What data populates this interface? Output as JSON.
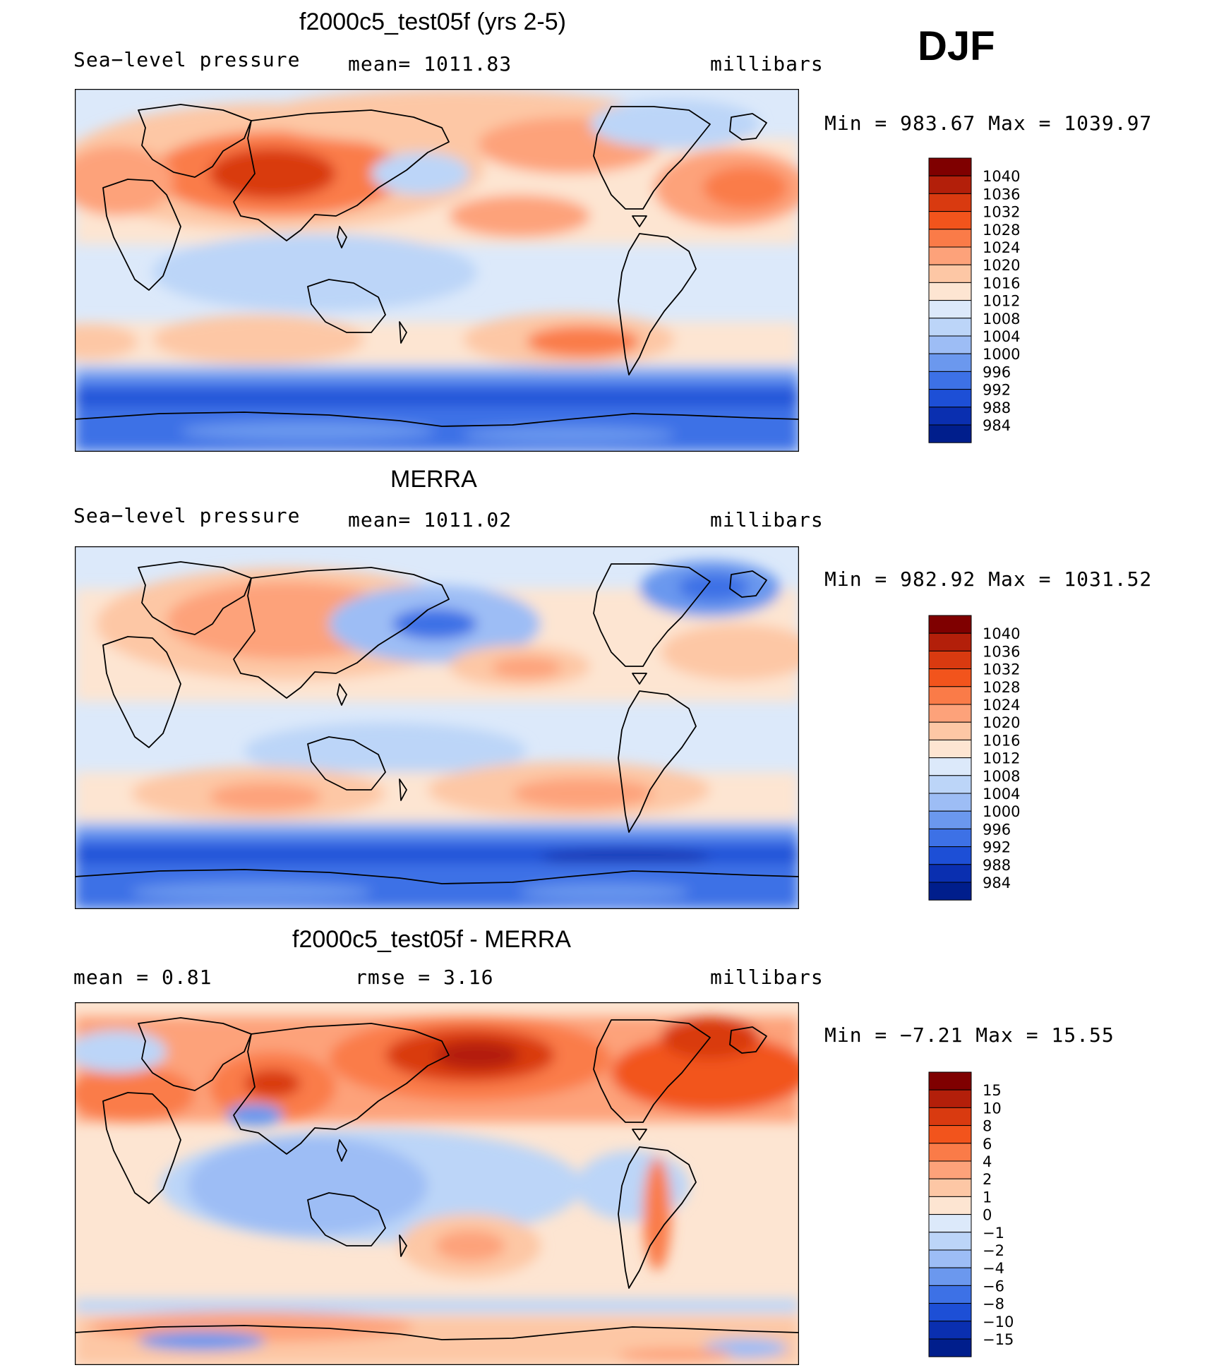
{
  "season": "DJF",
  "chart_data": [
    {
      "type": "heatmap",
      "title": "f2000c5_test05f (yrs 2-5)",
      "left_label": "Sea−level pressure",
      "center_label": "mean=  1011.83",
      "units": "millibars",
      "minmax": "Min  =  983.67  Max  =  1039.97",
      "min": 983.67,
      "max": 1039.97,
      "mean": 1011.83,
      "colorbar_labels": [
        "1040",
        "1036",
        "1032",
        "1028",
        "1024",
        "1020",
        "1016",
        "1012",
        "1008",
        "1004",
        "1000",
        "996",
        "992",
        "988",
        "984"
      ],
      "colorbar_colors": [
        "#7f0000",
        "#b31f0a",
        "#d93a10",
        "#f2541c",
        "#fa7b48",
        "#fda27a",
        "#fdc7a5",
        "#fde5d2",
        "#dce9fa",
        "#bcd5f8",
        "#9dbdf5",
        "#6b98ee",
        "#3d71e6",
        "#1d4fd6",
        "#0a2fb0",
        "#001e8c"
      ]
    },
    {
      "type": "heatmap",
      "title": "MERRA",
      "left_label": "Sea−level pressure",
      "center_label": "mean=  1011.02",
      "units": "millibars",
      "minmax": "Min  =  982.92  Max  =  1031.52",
      "min": 982.92,
      "max": 1031.52,
      "mean": 1011.02,
      "colorbar_labels": [
        "1040",
        "1036",
        "1032",
        "1028",
        "1024",
        "1020",
        "1016",
        "1012",
        "1008",
        "1004",
        "1000",
        "996",
        "992",
        "988",
        "984"
      ],
      "colorbar_colors": [
        "#7f0000",
        "#b31f0a",
        "#d93a10",
        "#f2541c",
        "#fa7b48",
        "#fda27a",
        "#fdc7a5",
        "#fde5d2",
        "#dce9fa",
        "#bcd5f8",
        "#9dbdf5",
        "#6b98ee",
        "#3d71e6",
        "#1d4fd6",
        "#0a2fb0",
        "#001e8c"
      ]
    },
    {
      "type": "heatmap",
      "title": "f2000c5_test05f - MERRA",
      "left_label": "mean =    0.81",
      "center_label": "rmse =    3.16",
      "units": "millibars",
      "minmax": "Min  =   −7.21  Max  =   15.55",
      "min": -7.21,
      "max": 15.55,
      "mean": 0.81,
      "rmse": 3.16,
      "colorbar_labels": [
        "15",
        "10",
        "8",
        "6",
        "4",
        "2",
        "1",
        "0",
        "−1",
        "−2",
        "−4",
        "−6",
        "−8",
        "−10",
        "−15"
      ],
      "colorbar_colors": [
        "#7f0000",
        "#b31f0a",
        "#d93a10",
        "#f2541c",
        "#fa7b48",
        "#fda27a",
        "#fdc7a5",
        "#fde5d2",
        "#dce9fa",
        "#bcd5f8",
        "#9dbdf5",
        "#6b98ee",
        "#3d71e6",
        "#1d4fd6",
        "#0a2fb0",
        "#001e8c"
      ]
    }
  ]
}
